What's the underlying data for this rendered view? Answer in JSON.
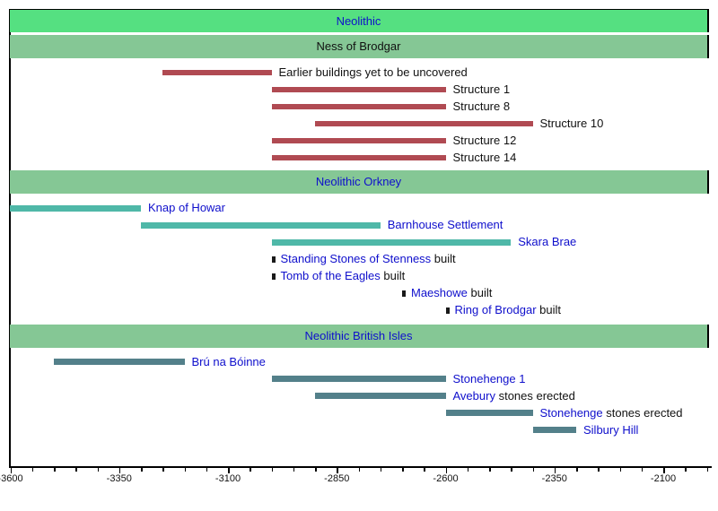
{
  "colors": {
    "header_bright_green": "#55e081",
    "header_muted_green": "#85c795",
    "bar_red": "#b04a52",
    "bar_teal": "#4fb8a8",
    "bar_slate": "#53808a",
    "link_blue": "#0f0fcc",
    "text_black": "#111111",
    "marker_black": "#1a1a1a",
    "frame_black": "#000000",
    "background": "#ffffff"
  },
  "chart_data": {
    "type": "bar",
    "subtype": "timeline-gantt",
    "unit": "calendar years (negative = BC)",
    "axis": {
      "min_year": -3600,
      "max_year": -2000,
      "major_interval": 250,
      "minor_interval": 50,
      "labels": [
        "-3600",
        "-3350",
        "-3100",
        "-2850",
        "-2600",
        "-2350",
        "-2100"
      ]
    },
    "sections": [
      {
        "id": "neolithic",
        "style": "bright",
        "header": {
          "label": "Neolithic",
          "is_link": true
        },
        "bars": []
      },
      {
        "id": "ness-of-brodgar",
        "style": "muted",
        "bar_color_key": "bar_red",
        "header": {
          "label": "Ness of Brodgar",
          "is_link": false
        },
        "bars": [
          {
            "label": "Earlier buildings yet to be uncovered",
            "start": -3250,
            "end": -3000
          },
          {
            "label": "Structure 1",
            "start": -3000,
            "end": -2600
          },
          {
            "label": "Structure 8",
            "start": -3000,
            "end": -2600
          },
          {
            "label": "Structure 10",
            "start": -2900,
            "end": -2400
          },
          {
            "label": "Structure 12",
            "start": -3000,
            "end": -2600
          },
          {
            "label": "Structure 14",
            "start": -3000,
            "end": -2600
          }
        ]
      },
      {
        "id": "neolithic-orkney",
        "style": "muted",
        "bar_color_key": "bar_teal",
        "header": {
          "label": "Neolithic Orkney",
          "is_link": true
        },
        "bars": [
          {
            "link_text": "Knap of Howar",
            "start": -3600,
            "end": -3300,
            "clipped_start": true
          },
          {
            "link_text": "Barnhouse Settlement",
            "start": -3300,
            "end": -2750
          },
          {
            "link_text": "Skara Brae",
            "start": -3000,
            "end": -2450
          },
          {
            "marker": true,
            "link_text": "Standing Stones of Stenness",
            "suffix": " built",
            "at": -3000
          },
          {
            "marker": true,
            "link_text": "Tomb of the Eagles",
            "suffix": " built",
            "at": -3000
          },
          {
            "marker": true,
            "link_text": "Maeshowe",
            "suffix": " built",
            "at": -2700
          },
          {
            "marker": true,
            "link_text": "Ring of Brodgar",
            "suffix": " built",
            "at": -2600
          }
        ]
      },
      {
        "id": "neolithic-british-isles",
        "style": "muted",
        "bar_color_key": "bar_slate",
        "header": {
          "label": "Neolithic British Isles",
          "is_link": true
        },
        "bars": [
          {
            "link_text": "Brú na Bóinne",
            "start": -3500,
            "end": -3200
          },
          {
            "link_text": "Stonehenge 1",
            "start": -3000,
            "end": -2600
          },
          {
            "link_text": "Avebury",
            "suffix": " stones erected",
            "start": -2900,
            "end": -2600
          },
          {
            "link_text": "Stonehenge",
            "suffix": " stones erected",
            "start": -2600,
            "end": -2400
          },
          {
            "link_text": "Silbury Hill",
            "start": -2400,
            "end": -2300
          }
        ]
      }
    ]
  }
}
